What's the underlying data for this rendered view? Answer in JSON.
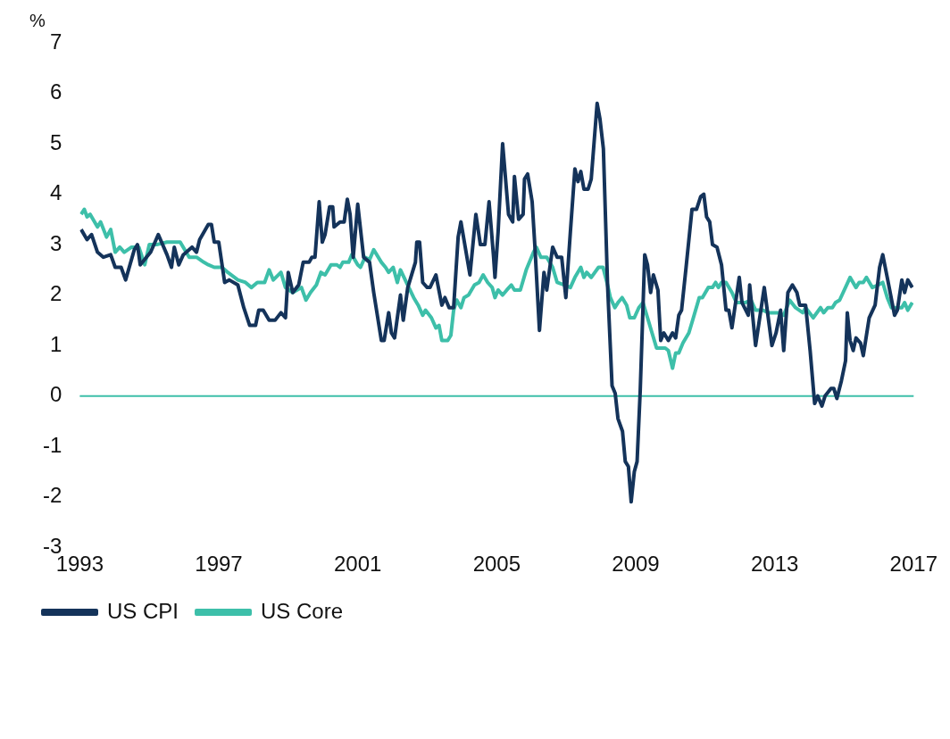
{
  "chart_data": {
    "type": "line",
    "ylabel": "%",
    "xlim": [
      1993,
      2017
    ],
    "xticks": [
      1993,
      1997,
      2001,
      2005,
      2009,
      2013,
      2017
    ],
    "ylim": [
      -3,
      7
    ],
    "yticks": [
      -3,
      -2,
      -1,
      0,
      1,
      2,
      3,
      4,
      5,
      6,
      7
    ],
    "grid": false,
    "legend": "bottom left",
    "marker": "none",
    "line_style": "solid",
    "ref_lines": [
      {
        "axis": "y",
        "value": 0,
        "color": "#3dbfa9"
      }
    ],
    "series": [
      {
        "name": "US CPI",
        "color": "#14335a",
        "x": [
          1993.04,
          1993.21,
          1993.34,
          1993.51,
          1993.68,
          1993.89,
          1994.02,
          1994.19,
          1994.32,
          1994.57,
          1994.66,
          1994.74,
          1995.04,
          1995.26,
          1995.51,
          1995.64,
          1995.72,
          1995.85,
          1995.98,
          1996.23,
          1996.36,
          1996.45,
          1996.7,
          1996.79,
          1996.87,
          1997.0,
          1997.17,
          1997.3,
          1997.55,
          1997.72,
          1997.89,
          1998.06,
          1998.15,
          1998.28,
          1998.45,
          1998.62,
          1998.79,
          1998.92,
          1999.0,
          1999.13,
          1999.3,
          1999.43,
          1999.6,
          1999.68,
          1999.77,
          1999.89,
          1999.98,
          2000.06,
          2000.19,
          2000.28,
          2000.32,
          2000.49,
          2000.61,
          2000.7,
          2000.78,
          2000.87,
          2001.0,
          2001.17,
          2001.34,
          2001.46,
          2001.68,
          2001.76,
          2001.89,
          2001.97,
          2002.06,
          2002.23,
          2002.31,
          2002.44,
          2002.66,
          2002.7,
          2002.78,
          2002.87,
          2003.0,
          2003.08,
          2003.25,
          2003.42,
          2003.51,
          2003.63,
          2003.76,
          2003.89,
          2003.97,
          2004.23,
          2004.4,
          2004.53,
          2004.66,
          2004.78,
          2004.91,
          2004.95,
          2005.04,
          2005.17,
          2005.34,
          2005.46,
          2005.51,
          2005.63,
          2005.76,
          2005.8,
          2005.89,
          2006.02,
          2006.1,
          2006.23,
          2006.36,
          2006.44,
          2006.61,
          2006.74,
          2006.87,
          2006.99,
          2007.12,
          2007.25,
          2007.34,
          2007.42,
          2007.51,
          2007.63,
          2007.72,
          2007.89,
          2007.97,
          2008.07,
          2008.19,
          2008.32,
          2008.41,
          2008.49,
          2008.62,
          2008.7,
          2008.79,
          2008.87,
          2008.96,
          2009.04,
          2009.13,
          2009.26,
          2009.34,
          2009.43,
          2009.51,
          2009.64,
          2009.72,
          2009.81,
          2009.94,
          2010.06,
          2010.15,
          2010.24,
          2010.32,
          2010.45,
          2010.62,
          2010.75,
          2010.87,
          2010.96,
          2011.04,
          2011.13,
          2011.21,
          2011.34,
          2011.47,
          2011.6,
          2011.68,
          2011.77,
          2011.98,
          2012.06,
          2012.24,
          2012.28,
          2012.45,
          2012.7,
          2012.92,
          2013.04,
          2013.17,
          2013.26,
          2013.38,
          2013.51,
          2013.64,
          2013.72,
          2013.89,
          2014.02,
          2014.15,
          2014.24,
          2014.36,
          2014.45,
          2014.62,
          2014.7,
          2014.79,
          2014.92,
          2015.04,
          2015.09,
          2015.17,
          2015.26,
          2015.34,
          2015.47,
          2015.55,
          2015.72,
          2015.89,
          2016.02,
          2016.11,
          2016.24,
          2016.45,
          2016.53,
          2016.66,
          2016.74,
          2016.83,
          2016.96
        ],
        "values": [
          3.3,
          3.1,
          3.2,
          2.85,
          2.75,
          2.8,
          2.55,
          2.55,
          2.3,
          2.9,
          3.0,
          2.6,
          2.85,
          3.2,
          2.8,
          2.55,
          2.95,
          2.6,
          2.8,
          2.95,
          2.85,
          3.1,
          3.4,
          3.4,
          3.05,
          3.05,
          2.25,
          2.3,
          2.2,
          1.75,
          1.4,
          1.4,
          1.7,
          1.7,
          1.5,
          1.5,
          1.65,
          1.55,
          2.45,
          2.05,
          2.2,
          2.65,
          2.65,
          2.75,
          2.75,
          3.85,
          3.05,
          3.2,
          3.75,
          3.75,
          3.35,
          3.45,
          3.45,
          3.9,
          3.6,
          2.75,
          3.8,
          2.75,
          2.65,
          2.05,
          1.1,
          1.1,
          1.65,
          1.25,
          1.15,
          2.0,
          1.5,
          2.15,
          2.65,
          3.05,
          3.05,
          2.25,
          2.15,
          2.15,
          2.4,
          1.8,
          1.95,
          1.75,
          1.75,
          3.15,
          3.45,
          2.4,
          3.6,
          3.0,
          3.0,
          3.85,
          2.75,
          2.35,
          3.25,
          5.0,
          3.6,
          3.45,
          4.35,
          3.5,
          3.6,
          4.3,
          4.4,
          3.85,
          2.95,
          1.3,
          2.45,
          2.1,
          2.95,
          2.75,
          2.75,
          1.95,
          3.25,
          4.5,
          4.25,
          4.45,
          4.1,
          4.1,
          4.3,
          5.8,
          5.5,
          4.9,
          2.2,
          0.2,
          0.05,
          -0.45,
          -0.7,
          -1.3,
          -1.4,
          -2.1,
          -1.5,
          -1.3,
          0.1,
          2.8,
          2.6,
          2.05,
          2.4,
          2.1,
          1.1,
          1.25,
          1.1,
          1.25,
          1.15,
          1.6,
          1.7,
          2.55,
          3.7,
          3.7,
          3.95,
          4.0,
          3.55,
          3.45,
          3.0,
          2.95,
          2.6,
          1.7,
          1.7,
          1.35,
          2.35,
          1.85,
          1.6,
          2.2,
          1.0,
          2.15,
          1.0,
          1.25,
          1.7,
          0.9,
          2.05,
          2.2,
          2.05,
          1.8,
          1.8,
          0.9,
          -0.15,
          0.0,
          -0.2,
          0.0,
          0.15,
          0.15,
          -0.05,
          0.3,
          0.7,
          1.65,
          1.1,
          0.9,
          1.15,
          1.05,
          0.8,
          1.55,
          1.8,
          2.55,
          2.8,
          2.35,
          1.6,
          1.7,
          2.3,
          2.05,
          2.3,
          2.15
        ]
      },
      {
        "name": "US Core",
        "color": "#3dbfa9",
        "x": [
          1993.04,
          1993.13,
          1993.21,
          1993.3,
          1993.51,
          1993.6,
          1993.77,
          1993.89,
          1994.02,
          1994.15,
          1994.28,
          1994.49,
          1994.7,
          1994.87,
          1995.0,
          1995.21,
          1995.51,
          1995.68,
          1995.89,
          1996.15,
          1996.36,
          1996.57,
          1996.7,
          1996.87,
          1997.09,
          1997.26,
          1997.55,
          1997.77,
          1997.94,
          1998.11,
          1998.32,
          1998.45,
          1998.57,
          1998.79,
          1998.92,
          1999.13,
          1999.38,
          1999.51,
          1999.64,
          1999.81,
          1999.94,
          2000.06,
          2000.23,
          2000.4,
          2000.49,
          2000.57,
          2000.74,
          2000.83,
          2001.0,
          2001.08,
          2001.21,
          2001.34,
          2001.46,
          2001.68,
          2001.8,
          2001.89,
          2002.02,
          2002.14,
          2002.23,
          2002.4,
          2002.61,
          2002.74,
          2002.87,
          2002.95,
          2003.12,
          2003.25,
          2003.34,
          2003.42,
          2003.59,
          2003.68,
          2003.76,
          2003.85,
          2003.97,
          2004.06,
          2004.19,
          2004.36,
          2004.49,
          2004.61,
          2004.74,
          2004.87,
          2004.95,
          2005.04,
          2005.17,
          2005.29,
          2005.42,
          2005.51,
          2005.68,
          2005.85,
          2006.06,
          2006.14,
          2006.27,
          2006.44,
          2006.61,
          2006.74,
          2006.95,
          2007.12,
          2007.25,
          2007.42,
          2007.51,
          2007.59,
          2007.72,
          2007.93,
          2008.06,
          2008.19,
          2008.27,
          2008.4,
          2008.49,
          2008.61,
          2008.74,
          2008.83,
          2008.96,
          2009.09,
          2009.21,
          2009.34,
          2009.47,
          2009.6,
          2009.85,
          2009.94,
          2010.06,
          2010.15,
          2010.24,
          2010.36,
          2010.53,
          2010.66,
          2010.83,
          2010.92,
          2011.09,
          2011.21,
          2011.3,
          2011.38,
          2011.47,
          2011.6,
          2011.77,
          2011.9,
          2012.15,
          2012.32,
          2012.45,
          2012.66,
          2012.83,
          2013.13,
          2013.26,
          2013.43,
          2013.6,
          2013.81,
          2013.89,
          2014.11,
          2014.32,
          2014.41,
          2014.53,
          2014.66,
          2014.75,
          2014.87,
          2015.17,
          2015.34,
          2015.43,
          2015.55,
          2015.64,
          2015.81,
          2015.98,
          2016.11,
          2016.24,
          2016.36,
          2016.49,
          2016.66,
          2016.74,
          2016.83,
          2016.96
        ],
        "values": [
          3.6,
          3.7,
          3.55,
          3.6,
          3.35,
          3.45,
          3.15,
          3.3,
          2.85,
          2.95,
          2.85,
          2.95,
          2.95,
          2.6,
          3.0,
          3.0,
          3.05,
          3.05,
          3.05,
          2.75,
          2.75,
          2.65,
          2.6,
          2.55,
          2.55,
          2.45,
          2.3,
          2.25,
          2.15,
          2.25,
          2.25,
          2.5,
          2.3,
          2.45,
          2.15,
          2.05,
          2.15,
          1.9,
          2.05,
          2.2,
          2.45,
          2.4,
          2.6,
          2.6,
          2.55,
          2.65,
          2.65,
          2.8,
          2.6,
          2.55,
          2.75,
          2.7,
          2.9,
          2.65,
          2.55,
          2.45,
          2.55,
          2.25,
          2.5,
          2.25,
          1.95,
          1.8,
          1.6,
          1.7,
          1.55,
          1.35,
          1.4,
          1.1,
          1.1,
          1.2,
          1.7,
          1.9,
          1.75,
          1.95,
          2.0,
          2.2,
          2.25,
          2.4,
          2.25,
          2.15,
          1.95,
          2.1,
          2.0,
          2.1,
          2.2,
          2.1,
          2.1,
          2.5,
          2.85,
          2.95,
          2.75,
          2.75,
          2.55,
          2.25,
          2.2,
          2.15,
          2.35,
          2.55,
          2.35,
          2.45,
          2.35,
          2.55,
          2.55,
          2.2,
          1.95,
          1.75,
          1.85,
          1.95,
          1.8,
          1.55,
          1.55,
          1.75,
          1.85,
          1.55,
          1.25,
          0.95,
          0.95,
          0.9,
          0.55,
          0.85,
          0.85,
          1.05,
          1.25,
          1.55,
          1.95,
          1.95,
          2.15,
          2.15,
          2.25,
          2.15,
          2.25,
          2.25,
          2.05,
          1.85,
          1.85,
          1.9,
          1.7,
          1.7,
          1.65,
          1.65,
          1.6,
          1.9,
          1.75,
          1.65,
          1.75,
          1.55,
          1.75,
          1.65,
          1.75,
          1.75,
          1.85,
          1.9,
          2.35,
          2.15,
          2.25,
          2.25,
          2.35,
          2.15,
          2.2,
          2.25,
          1.95,
          1.75,
          1.75,
          1.75,
          1.85,
          1.7,
          1.85
        ]
      }
    ]
  }
}
